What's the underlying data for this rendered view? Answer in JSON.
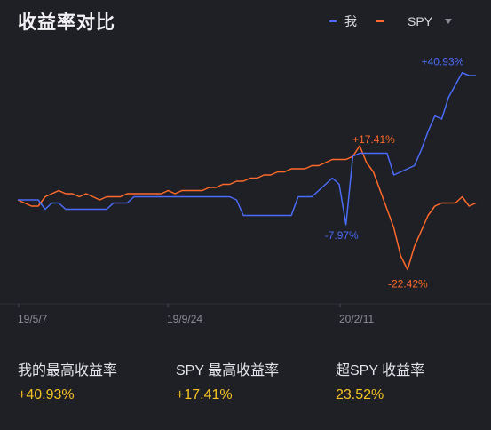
{
  "header": {
    "title": "收益率对比"
  },
  "legend": {
    "items": [
      {
        "label": "我",
        "color": "#4a6cf7"
      },
      {
        "label": "SPY",
        "color": "#ff6a2a"
      }
    ]
  },
  "stats": [
    {
      "label": "我的最高收益率",
      "value": "+40.93%"
    },
    {
      "label": "SPY 最高收益率",
      "value": "+17.41%"
    },
    {
      "label": "超SPY 收益率",
      "value": "23.52%"
    }
  ],
  "chart_data": {
    "type": "line",
    "x_ticks": [
      "19/5/7",
      "19/9/24",
      "20/2/11"
    ],
    "ylim": [
      -30,
      50
    ],
    "annotations": [
      {
        "text": "+40.93%",
        "series": "我",
        "x_index": 65,
        "y": 40.93
      },
      {
        "text": "+17.41%",
        "series": "SPY",
        "x_index": 50,
        "y": 17.41
      },
      {
        "text": "-7.97%",
        "series": "我",
        "x_index": 48,
        "y": -7.97
      },
      {
        "text": "-22.42%",
        "series": "SPY",
        "x_index": 57,
        "y": -22.42
      }
    ],
    "series": [
      {
        "name": "我",
        "color": "#4a6cf7",
        "values": [
          0,
          0,
          0,
          0,
          -3,
          -1,
          -1,
          -3,
          -3,
          -3,
          -3,
          -3,
          -3,
          -3,
          -1,
          -1,
          -1,
          1,
          1,
          1,
          1,
          1,
          1,
          1,
          1,
          1,
          1,
          1,
          1,
          1,
          1,
          1,
          0,
          -5,
          -5,
          -5,
          -5,
          -5,
          -5,
          -5,
          -5,
          1,
          1,
          1,
          3,
          5,
          7,
          5,
          -7.97,
          14,
          15,
          15,
          15,
          15,
          15,
          8,
          9,
          10,
          11,
          16,
          22,
          27,
          26,
          33,
          37,
          40.93,
          40,
          40
        ]
      },
      {
        "name": "SPY",
        "color": "#ff6a2a",
        "values": [
          0,
          -1,
          -2,
          -2,
          1,
          2,
          3,
          2,
          2,
          1,
          2,
          1,
          0,
          1,
          1,
          1,
          2,
          2,
          2,
          2,
          2,
          2,
          3,
          2,
          3,
          3,
          3,
          3,
          4,
          4,
          5,
          5,
          6,
          6,
          7,
          7,
          8,
          8,
          9,
          9,
          10,
          10,
          10,
          11,
          11,
          12,
          13,
          13,
          13,
          14,
          17.41,
          12,
          9,
          3,
          -3,
          -9,
          -18,
          -22.42,
          -15,
          -10,
          -5,
          -2,
          -1,
          -1,
          -1,
          1,
          -2,
          -1
        ]
      }
    ]
  }
}
